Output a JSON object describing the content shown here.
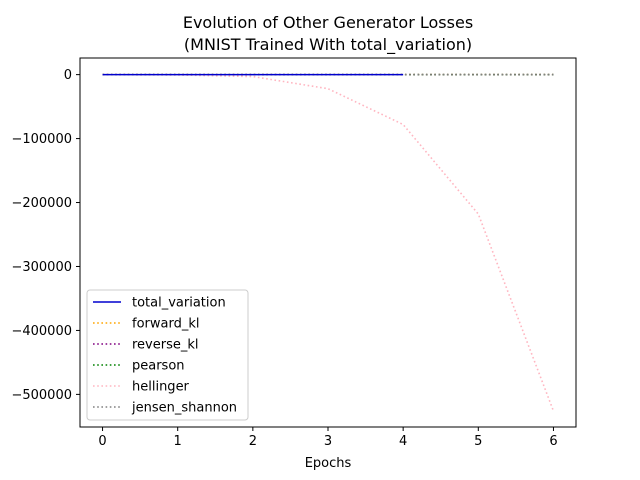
{
  "chart_data": {
    "type": "line",
    "title_line1": "Evolution of Other Generator Losses",
    "title_line2": "(MNIST Trained With total_variation)",
    "xlabel": "Epochs",
    "ylabel": "",
    "xlim": [
      -0.3,
      6.3
    ],
    "ylim": [
      -551000,
      26000
    ],
    "xticks": [
      0,
      1,
      2,
      3,
      4,
      5,
      6
    ],
    "yticks": [
      0,
      -100000,
      -200000,
      -300000,
      -400000,
      -500000
    ],
    "ytick_labels": [
      "0",
      "−100000",
      "−200000",
      "−300000",
      "−400000",
      "−500000"
    ],
    "grid": false,
    "legend_position": "lower-left",
    "series": [
      {
        "name": "total_variation",
        "color": "#0000cd",
        "style": "solid",
        "x": [
          0,
          1,
          2,
          3,
          4
        ],
        "y": [
          0,
          0,
          0,
          0,
          0
        ]
      },
      {
        "name": "forward_kl",
        "color": "#ffa500",
        "style": "dotted",
        "x": [
          0,
          1,
          2,
          3,
          4,
          5,
          6
        ],
        "y": [
          0,
          0,
          0,
          0,
          0,
          0,
          0
        ]
      },
      {
        "name": "reverse_kl",
        "color": "#800080",
        "style": "dotted",
        "x": [
          0,
          1,
          2,
          3,
          4,
          5,
          6
        ],
        "y": [
          0,
          0,
          0,
          0,
          0,
          0,
          0
        ]
      },
      {
        "name": "pearson",
        "color": "#008000",
        "style": "dotted",
        "x": [
          0,
          1,
          2,
          3,
          4,
          5,
          6
        ],
        "y": [
          0,
          0,
          0,
          0,
          0,
          0,
          0
        ]
      },
      {
        "name": "hellinger",
        "color": "#ffb6c1",
        "style": "dotted",
        "x": [
          0,
          1,
          2,
          3,
          4,
          5,
          6
        ],
        "y": [
          0,
          -500,
          -3000,
          -22000,
          -78000,
          -218000,
          -526000
        ]
      },
      {
        "name": "jensen_shannon",
        "color": "#808080",
        "style": "dotted",
        "x": [
          0,
          1,
          2,
          3,
          4,
          5,
          6
        ],
        "y": [
          0,
          0,
          0,
          0,
          0,
          0,
          0
        ]
      }
    ]
  }
}
